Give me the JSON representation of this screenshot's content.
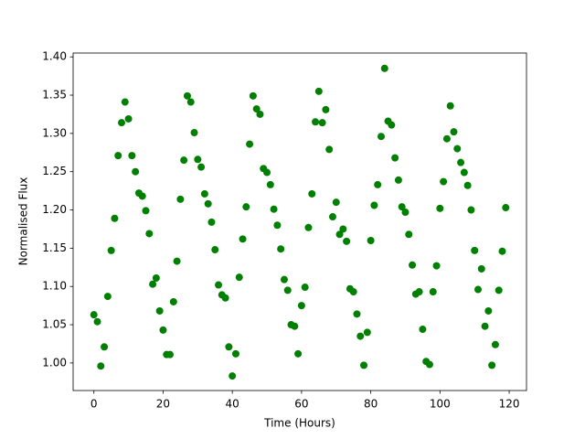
{
  "chart_data": {
    "type": "scatter",
    "xlabel": "Time (Hours)",
    "ylabel": "Normalised Flux",
    "color": "#008000",
    "x": [
      0,
      1,
      2,
      3,
      4,
      5,
      6,
      7,
      8,
      9,
      10,
      11,
      12,
      13,
      14,
      15,
      16,
      17,
      18,
      19,
      20,
      21,
      22,
      23,
      24,
      25,
      26,
      27,
      28,
      29,
      30,
      31,
      32,
      33,
      34,
      35,
      36,
      37,
      38,
      39,
      40,
      41,
      42,
      43,
      44,
      45,
      46,
      47,
      48,
      49,
      50,
      51,
      52,
      53,
      54,
      55,
      56,
      57,
      58,
      59,
      60,
      61,
      62,
      63,
      64,
      65,
      66,
      67,
      68,
      69,
      70,
      71,
      72,
      73,
      74,
      75,
      76,
      77,
      78,
      79,
      80,
      81,
      82,
      83,
      84,
      85,
      86,
      87,
      88,
      89,
      90,
      91,
      92,
      93,
      94,
      95,
      96,
      97,
      98,
      99,
      100,
      101,
      102,
      103,
      104,
      105,
      106,
      107,
      108,
      109,
      110,
      111,
      112,
      113,
      114,
      115,
      116,
      117,
      118,
      119
    ],
    "values": [
      1.063,
      1.054,
      0.996,
      1.021,
      1.087,
      1.147,
      1.189,
      1.271,
      1.314,
      1.341,
      1.319,
      1.271,
      1.25,
      1.222,
      1.218,
      1.199,
      1.169,
      1.103,
      1.111,
      1.068,
      1.043,
      1.011,
      1.011,
      1.08,
      1.133,
      1.214,
      1.265,
      1.349,
      1.341,
      1.301,
      1.266,
      1.256,
      1.221,
      1.208,
      1.184,
      1.148,
      1.102,
      1.089,
      1.085,
      1.021,
      0.983,
      1.012,
      1.112,
      1.162,
      1.204,
      1.286,
      1.349,
      1.332,
      1.325,
      1.254,
      1.249,
      1.233,
      1.201,
      1.18,
      1.149,
      1.109,
      1.095,
      1.05,
      1.048,
      1.012,
      1.075,
      1.099,
      1.177,
      1.221,
      1.315,
      1.355,
      1.314,
      1.331,
      1.279,
      1.191,
      1.21,
      1.168,
      1.175,
      1.159,
      1.097,
      1.093,
      1.064,
      1.035,
      0.997,
      1.04,
      1.16,
      1.206,
      1.233,
      1.296,
      1.385,
      1.316,
      1.311,
      1.268,
      1.239,
      1.204,
      1.197,
      1.168,
      1.128,
      1.09,
      1.093,
      1.044,
      1.002,
      0.998,
      1.093,
      1.127,
      1.202,
      1.237,
      1.293,
      1.336,
      1.302,
      1.28,
      1.262,
      1.249,
      1.232,
      1.2,
      1.147,
      1.096,
      1.123,
      1.048,
      1.068,
      0.997,
      1.024,
      1.095,
      1.146,
      1.203
    ],
    "xlim": [
      -6,
      125
    ],
    "xticks": [
      0,
      20,
      40,
      60,
      80,
      100,
      120
    ],
    "ylim": [
      0.964,
      1.405
    ],
    "yticks": [
      {
        "value": 1.0,
        "label": "1.00"
      },
      {
        "value": 1.05,
        "label": "1.05"
      },
      {
        "value": 1.1,
        "label": "1.10"
      },
      {
        "value": 1.15,
        "label": "1.15"
      },
      {
        "value": 1.2,
        "label": "1.20"
      },
      {
        "value": 1.25,
        "label": "1.25"
      },
      {
        "value": 1.3,
        "label": "1.30"
      },
      {
        "value": 1.35,
        "label": "1.35"
      },
      {
        "value": 1.4,
        "label": "1.40"
      }
    ],
    "grid": false
  }
}
